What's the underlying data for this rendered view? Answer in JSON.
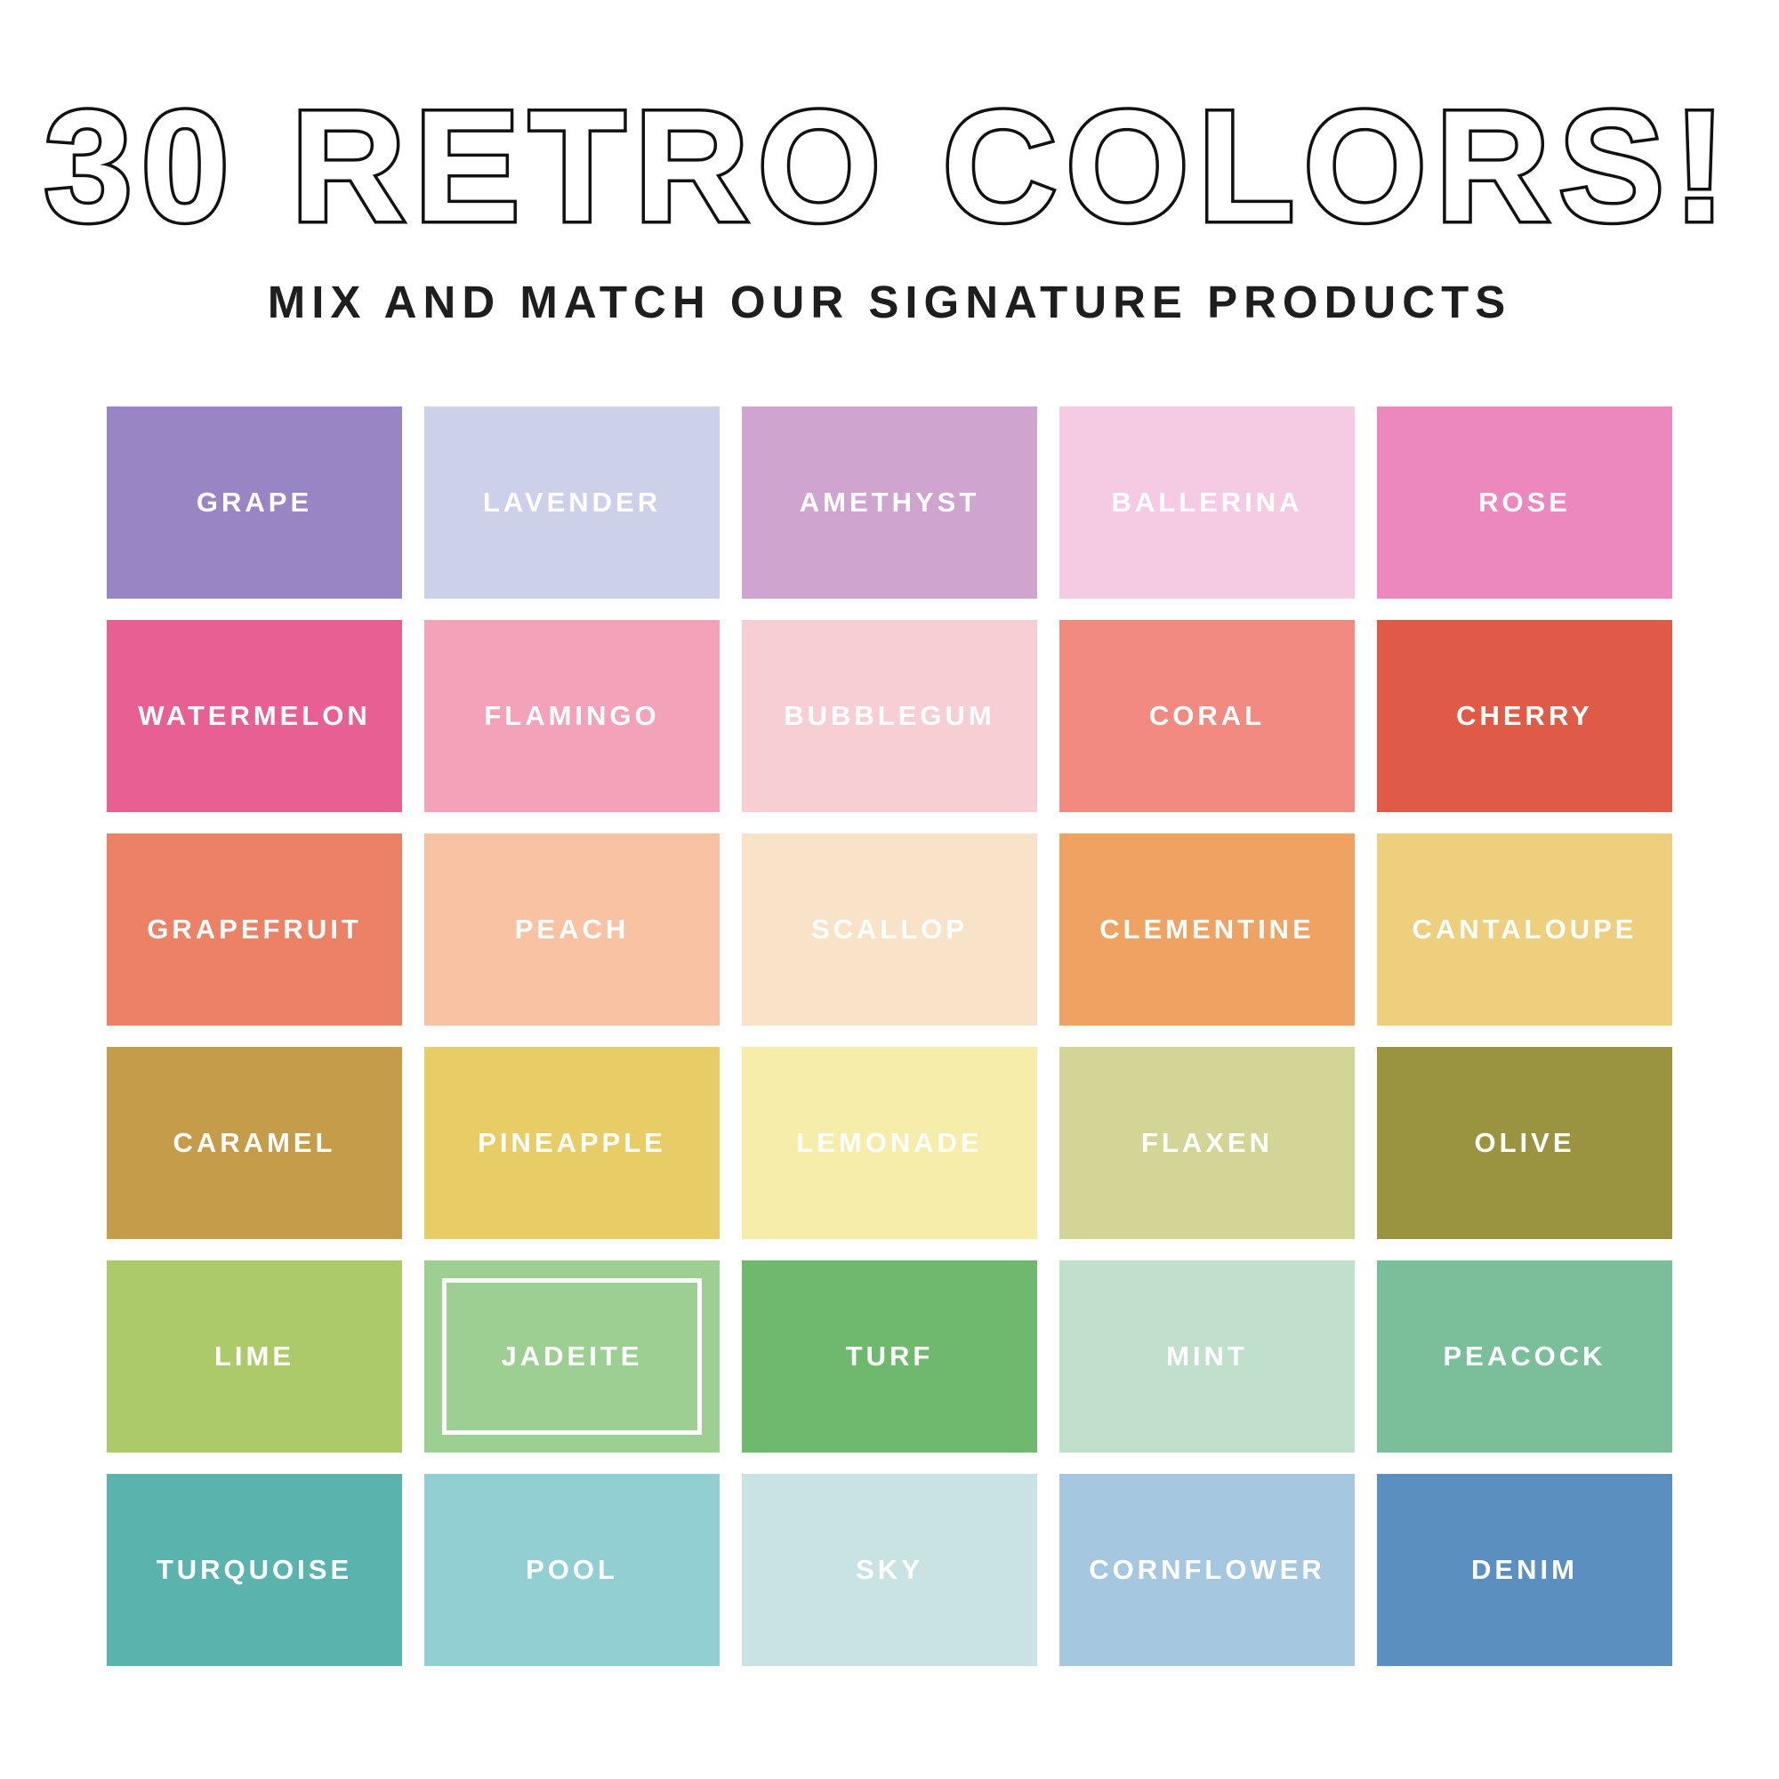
{
  "header": {
    "title": "30 RETRO COLORS!",
    "subtitle": "MIX AND MATCH OUR SIGNATURE PRODUCTS"
  },
  "grid": {
    "columns": 5,
    "rows": 6,
    "label_color": "#ffffff",
    "selected_border_color": "#ffffff",
    "swatches": [
      {
        "name": "GRAPE",
        "hex": "#9885c3"
      },
      {
        "name": "LAVENDER",
        "hex": "#ccd0e9"
      },
      {
        "name": "AMETHYST",
        "hex": "#cfa5d0"
      },
      {
        "name": "BALLERINA",
        "hex": "#f5cbe3"
      },
      {
        "name": "ROSE",
        "hex": "#ec88be"
      },
      {
        "name": "WATERMELON",
        "hex": "#e75f93"
      },
      {
        "name": "FLAMINGO",
        "hex": "#f4a1ba"
      },
      {
        "name": "BUBBLEGUM",
        "hex": "#f8ced5"
      },
      {
        "name": "CORAL",
        "hex": "#f28a81"
      },
      {
        "name": "CHERRY",
        "hex": "#df5a47"
      },
      {
        "name": "GRAPEFRUIT",
        "hex": "#ec8166"
      },
      {
        "name": "PEACH",
        "hex": "#f9c3a3"
      },
      {
        "name": "SCALLOP",
        "hex": "#f8e3c9"
      },
      {
        "name": "CLEMENTINE",
        "hex": "#f0a263"
      },
      {
        "name": "CANTALOUPE",
        "hex": "#eecf7e"
      },
      {
        "name": "CARAMEL",
        "hex": "#c59c4a"
      },
      {
        "name": "PINEAPPLE",
        "hex": "#e8cd66"
      },
      {
        "name": "LEMONADE",
        "hex": "#f5eda9"
      },
      {
        "name": "FLAXEN",
        "hex": "#d3d597"
      },
      {
        "name": "OLIVE",
        "hex": "#9a9340"
      },
      {
        "name": "LIME",
        "hex": "#adca6b"
      },
      {
        "name": "JADEITE",
        "hex": "#9dcf93",
        "selected": true
      },
      {
        "name": "TURF",
        "hex": "#6fb96f"
      },
      {
        "name": "MINT",
        "hex": "#c0e0cc"
      },
      {
        "name": "PEACOCK",
        "hex": "#7abf9a"
      },
      {
        "name": "TURQUOISE",
        "hex": "#5bb3ae"
      },
      {
        "name": "POOL",
        "hex": "#92cfd2"
      },
      {
        "name": "SKY",
        "hex": "#c8e3e2"
      },
      {
        "name": "CORNFLOWER",
        "hex": "#a5c8e0"
      },
      {
        "name": "DENIM",
        "hex": "#5a8fc0"
      }
    ]
  },
  "colors": {
    "background": "#ffffff",
    "title_fill": "#ffffff",
    "title_outline": "#121212",
    "subtitle_text": "#1e1e1e"
  }
}
